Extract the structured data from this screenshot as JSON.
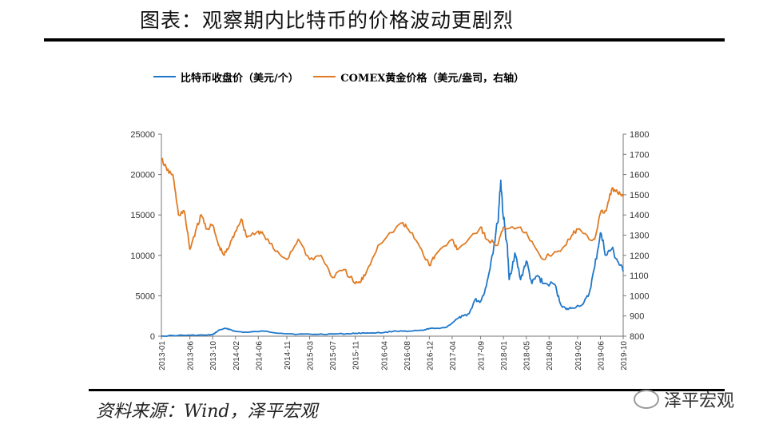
{
  "header": {
    "title": "图表：观察期内比特币的价格波动更剧烈"
  },
  "footer": {
    "source": "资料来源：Wind，泽平宏观",
    "watermark": "泽平宏观"
  },
  "colors": {
    "btc": "#1f77c9",
    "gold": "#e07b23"
  },
  "chart_data": {
    "type": "line",
    "title": "",
    "legend_position": "top",
    "series": [
      {
        "name": "比特币收盘价（美元/个）",
        "axis": "left",
        "points": [
          [
            "2013-01",
            15
          ],
          [
            "2013-04",
            100
          ],
          [
            "2013-06",
            110
          ],
          [
            "2013-09",
            130
          ],
          [
            "2013-10",
            180
          ],
          [
            "2013-11",
            700
          ],
          [
            "2013-12",
            950
          ],
          [
            "2014-01",
            850
          ],
          [
            "2014-02",
            580
          ],
          [
            "2014-04",
            480
          ],
          [
            "2014-07",
            620
          ],
          [
            "2014-10",
            360
          ],
          [
            "2015-01",
            250
          ],
          [
            "2015-04",
            230
          ],
          [
            "2015-07",
            280
          ],
          [
            "2015-10",
            300
          ],
          [
            "2015-11",
            360
          ],
          [
            "2016-01",
            400
          ],
          [
            "2016-04",
            440
          ],
          [
            "2016-06",
            650
          ],
          [
            "2016-08",
            580
          ],
          [
            "2016-11",
            730
          ],
          [
            "2016-12",
            960
          ],
          [
            "2017-01",
            950
          ],
          [
            "2017-03",
            1100
          ],
          [
            "2017-05",
            2200
          ],
          [
            "2017-06",
            2500
          ],
          [
            "2017-07",
            2800
          ],
          [
            "2017-08",
            4500
          ],
          [
            "2017-09",
            4300
          ],
          [
            "2017-10",
            6200
          ],
          [
            "2017-11",
            10000
          ],
          [
            "2017-12",
            14000
          ],
          [
            "2017-12-17",
            19300
          ],
          [
            "2018-01",
            14500
          ],
          [
            "2018-01-20",
            11500
          ],
          [
            "2018-02",
            7000
          ],
          [
            "2018-03",
            10300
          ],
          [
            "2018-04",
            7000
          ],
          [
            "2018-05",
            9300
          ],
          [
            "2018-06",
            6500
          ],
          [
            "2018-07",
            7500
          ],
          [
            "2018-08",
            6500
          ],
          [
            "2018-10",
            6400
          ],
          [
            "2018-11",
            4000
          ],
          [
            "2018-12",
            3300
          ],
          [
            "2019-01",
            3500
          ],
          [
            "2019-03",
            4000
          ],
          [
            "2019-04",
            5200
          ],
          [
            "2019-05",
            8500
          ],
          [
            "2019-06",
            12800
          ],
          [
            "2019-07",
            10000
          ],
          [
            "2019-08",
            10800
          ],
          [
            "2019-09",
            9300
          ],
          [
            "2019-10",
            8000
          ]
        ]
      },
      {
        "name": "COMEX黄金价格（美元/盎司，右轴）",
        "axis": "right",
        "points": [
          [
            "2013-01",
            1680
          ],
          [
            "2013-02",
            1620
          ],
          [
            "2013-03",
            1600
          ],
          [
            "2013-04",
            1400
          ],
          [
            "2013-05",
            1420
          ],
          [
            "2013-06",
            1230
          ],
          [
            "2013-07",
            1320
          ],
          [
            "2013-08",
            1400
          ],
          [
            "2013-09",
            1330
          ],
          [
            "2013-10",
            1350
          ],
          [
            "2013-11",
            1250
          ],
          [
            "2013-12",
            1200
          ],
          [
            "2014-01",
            1250
          ],
          [
            "2014-02",
            1320
          ],
          [
            "2014-03",
            1380
          ],
          [
            "2014-04",
            1290
          ],
          [
            "2014-06",
            1320
          ],
          [
            "2014-07",
            1300
          ],
          [
            "2014-09",
            1220
          ],
          [
            "2014-11",
            1180
          ],
          [
            "2015-01",
            1280
          ],
          [
            "2015-03",
            1180
          ],
          [
            "2015-05",
            1200
          ],
          [
            "2015-07",
            1090
          ],
          [
            "2015-09",
            1130
          ],
          [
            "2015-11",
            1060
          ],
          [
            "2015-12",
            1070
          ],
          [
            "2016-01",
            1120
          ],
          [
            "2016-03",
            1250
          ],
          [
            "2016-07",
            1360
          ],
          [
            "2016-08",
            1340
          ],
          [
            "2016-10",
            1260
          ],
          [
            "2016-12",
            1150
          ],
          [
            "2017-01",
            1200
          ],
          [
            "2017-04",
            1280
          ],
          [
            "2017-05",
            1230
          ],
          [
            "2017-09",
            1340
          ],
          [
            "2017-10",
            1280
          ],
          [
            "2017-12",
            1250
          ],
          [
            "2018-01",
            1340
          ],
          [
            "2018-04",
            1340
          ],
          [
            "2018-06",
            1270
          ],
          [
            "2018-08",
            1180
          ],
          [
            "2018-09",
            1200
          ],
          [
            "2018-11",
            1220
          ],
          [
            "2019-01",
            1300
          ],
          [
            "2019-02",
            1330
          ],
          [
            "2019-04",
            1280
          ],
          [
            "2019-05",
            1280
          ],
          [
            "2019-06",
            1410
          ],
          [
            "2019-07",
            1420
          ],
          [
            "2019-08",
            1530
          ],
          [
            "2019-09",
            1510
          ],
          [
            "2019-10",
            1490
          ]
        ]
      }
    ],
    "y_left": {
      "min": 0,
      "max": 25000,
      "ticks": [
        "25000",
        "20000",
        "15000",
        "10000",
        "5000",
        "0"
      ]
    },
    "y_right": {
      "min": 800,
      "max": 1800,
      "ticks": [
        "1800",
        "1700",
        "1600",
        "1500",
        "1400",
        "1300",
        "1200",
        "1100",
        "1000",
        "900",
        "800"
      ]
    },
    "x_range": [
      "2013-01",
      "2019-10"
    ],
    "x_ticks": [
      "2013-01",
      "2013-06",
      "2013-10",
      "2014-02",
      "2014-06",
      "2014-11",
      "2015-03",
      "2015-07",
      "2015-11",
      "2016-04",
      "2016-08",
      "2016-12",
      "2017-04",
      "2017-09",
      "2018-01",
      "2018-05",
      "2018-09",
      "2019-02",
      "2019-06",
      "2019-10"
    ]
  }
}
